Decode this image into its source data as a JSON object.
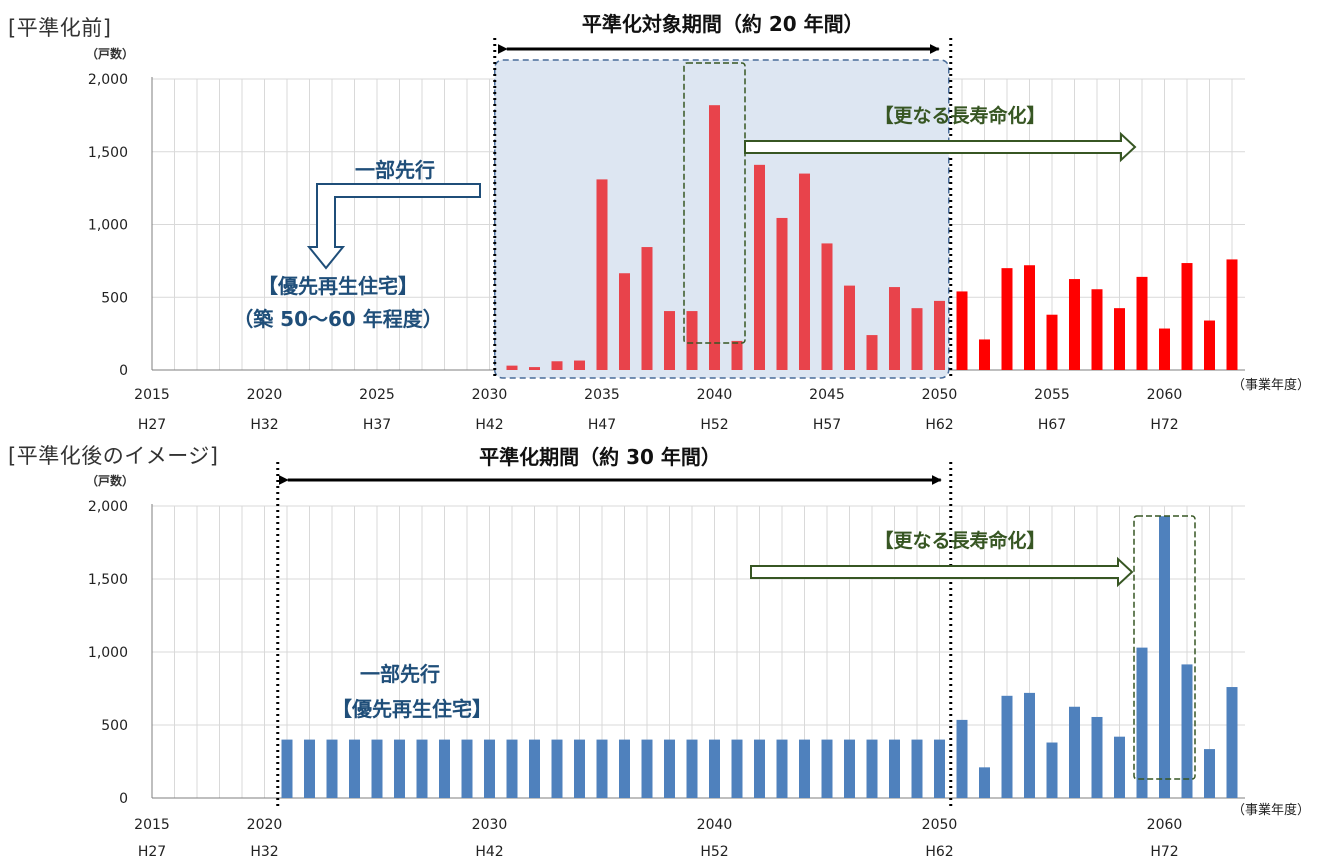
{
  "top": {
    "title": "[平準化前]",
    "y_unit": "（戸数）",
    "x_unit": "（事業年度）",
    "period_label": "平準化対象期間（約 20 年間）",
    "prolong_label": "【更なる長寿命化】",
    "advance_label": "一部先行",
    "priority_label": "【優先再生住宅】",
    "priority_sub": "（築 50～60 年程度）"
  },
  "bottom": {
    "title": "[平準化後のイメージ]",
    "y_unit": "（戸数）",
    "x_unit": "（事業年度）",
    "period_label": "平準化期間（約 30 年間）",
    "prolong_label": "【更なる長寿命化】",
    "advance_label": "一部先行",
    "priority_label": "【優先再生住宅】"
  },
  "colors": {
    "top_before_bar": "#e8434b",
    "top_after_bar": "#ff0000",
    "bottom_bar": "#4f81bd",
    "shade_fill": "#dde6f2",
    "shade_border": "#4a6d9a",
    "green": "#375623",
    "blue_text": "#1f4e79",
    "grid": "#d9d9d9"
  },
  "chart_data": [
    {
      "type": "bar",
      "title": "[平準化前]",
      "ylabel": "（戸数）",
      "xlabel": "（事業年度）",
      "ylim": [
        0,
        2000
      ],
      "yticks": [
        0,
        500,
        1000,
        1500,
        2000
      ],
      "ytick_labels": [
        "0",
        "500",
        "1,000",
        "1,500",
        "2,000"
      ],
      "xticks": [
        2015,
        2020,
        2025,
        2030,
        2035,
        2040,
        2045,
        2050,
        2055,
        2060
      ],
      "xtick_labels": [
        "2015",
        "2020",
        "2025",
        "2030",
        "2035",
        "2040",
        "2045",
        "2050",
        "2055",
        "2060"
      ],
      "xtick_labels_wareki": [
        "H27",
        "H32",
        "H37",
        "H42",
        "H47",
        "H52",
        "H57",
        "H62",
        "H67",
        "H72"
      ],
      "grid": true,
      "series": [
        {
          "x": [
            2031,
            2032,
            2033,
            2034,
            2035,
            2036,
            2037,
            2038,
            2039,
            2040,
            2041,
            2042,
            2043,
            2044,
            2045,
            2046,
            2047,
            2048,
            2049,
            2050,
            2051,
            2052,
            2053,
            2054,
            2055,
            2056,
            2057,
            2058,
            2059,
            2060,
            2061,
            2062,
            2063
          ],
          "values": [
            30,
            20,
            60,
            65,
            1310,
            665,
            845,
            405,
            405,
            1820,
            200,
            1410,
            1045,
            1350,
            870,
            580,
            240,
            570,
            425,
            475,
            540,
            210,
            700,
            720,
            380,
            625,
            555,
            425,
            640,
            285,
            735,
            340,
            760
          ]
        }
      ]
    },
    {
      "type": "bar",
      "title": "[平準化後のイメージ]",
      "ylabel": "（戸数）",
      "xlabel": "（事業年度）",
      "ylim": [
        0,
        2000
      ],
      "yticks": [
        0,
        500,
        1000,
        1500,
        2000
      ],
      "ytick_labels": [
        "0",
        "500",
        "1,000",
        "1,500",
        "2,000"
      ],
      "xticks": [
        2015,
        2020,
        2030,
        2040,
        2050,
        2060
      ],
      "xtick_labels": [
        "2015",
        "2020",
        "2030",
        "2040",
        "2050",
        "2060"
      ],
      "xtick_labels_wareki": [
        "H27",
        "H32",
        "H42",
        "H52",
        "H62",
        "H72"
      ],
      "grid": true,
      "series": [
        {
          "x": [
            2021,
            2022,
            2023,
            2024,
            2025,
            2026,
            2027,
            2028,
            2029,
            2030,
            2031,
            2032,
            2033,
            2034,
            2035,
            2036,
            2037,
            2038,
            2039,
            2040,
            2041,
            2042,
            2043,
            2044,
            2045,
            2046,
            2047,
            2048,
            2049,
            2050,
            2051,
            2052,
            2053,
            2054,
            2055,
            2056,
            2057,
            2058,
            2059,
            2060,
            2061,
            2062,
            2063
          ],
          "values": [
            400,
            400,
            400,
            400,
            400,
            400,
            400,
            400,
            400,
            400,
            400,
            400,
            400,
            400,
            400,
            400,
            400,
            400,
            400,
            400,
            400,
            400,
            400,
            400,
            400,
            400,
            400,
            400,
            400,
            400,
            535,
            210,
            700,
            720,
            380,
            625,
            555,
            420,
            1030,
            1930,
            915,
            335,
            760
          ]
        }
      ]
    }
  ]
}
